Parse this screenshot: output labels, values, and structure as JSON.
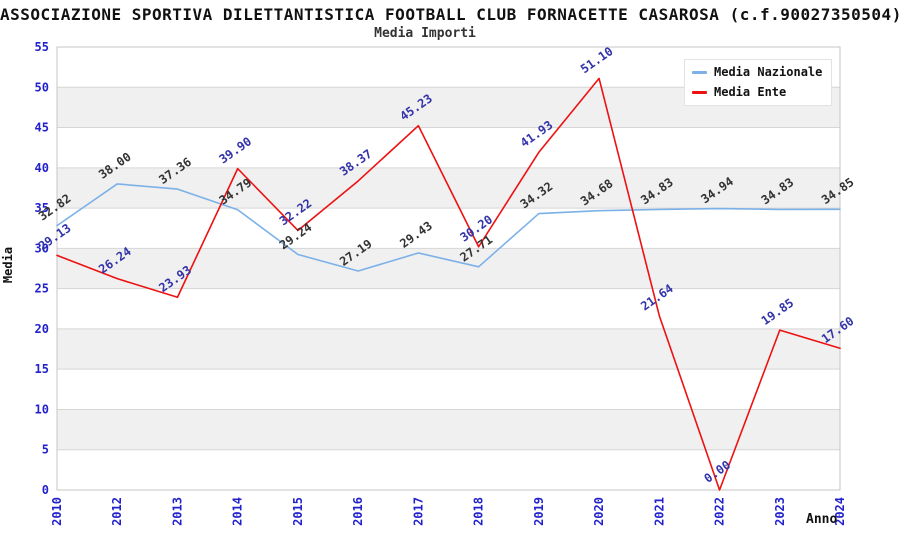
{
  "page": {
    "background": "#ffffff"
  },
  "chart_data": {
    "type": "line",
    "title": "ASSOCIAZIONE SPORTIVA DILETTANTISTICA FOOTBALL CLUB FORNACETTE CASAROSA (c.f.90027350504)",
    "subtitle": "Media Importi",
    "xlabel": "Anno",
    "ylabel": "Media",
    "ylim": [
      0,
      55
    ],
    "ytick_step": 5,
    "categories": [
      "2010",
      "2012",
      "2013",
      "2014",
      "2015",
      "2016",
      "2017",
      "2018",
      "2019",
      "2020",
      "2021",
      "2022",
      "2023",
      "2024"
    ],
    "series": [
      {
        "name": "Media Nazionale",
        "color": "#7cb1e8",
        "label_color": "#333333",
        "values": [
          32.82,
          38.0,
          37.36,
          34.79,
          29.24,
          27.19,
          29.43,
          27.71,
          34.32,
          34.68,
          34.83,
          34.94,
          34.83,
          34.85
        ]
      },
      {
        "name": "Media Ente",
        "color": "#ee1111",
        "label_color": "#3333aa",
        "values": [
          29.13,
          26.24,
          23.93,
          39.9,
          32.22,
          38.37,
          45.23,
          30.2,
          41.93,
          51.1,
          21.64,
          0.0,
          19.85,
          17.6
        ]
      }
    ],
    "legend_position": "top-right",
    "grid": {
      "horizontal_bands": true,
      "band_color": "#f0f0f0",
      "gridline_color": "#d6d6d6",
      "border_color": "#c6c6c6"
    },
    "tick_color": "#2222cc",
    "label_decimals": 2
  }
}
